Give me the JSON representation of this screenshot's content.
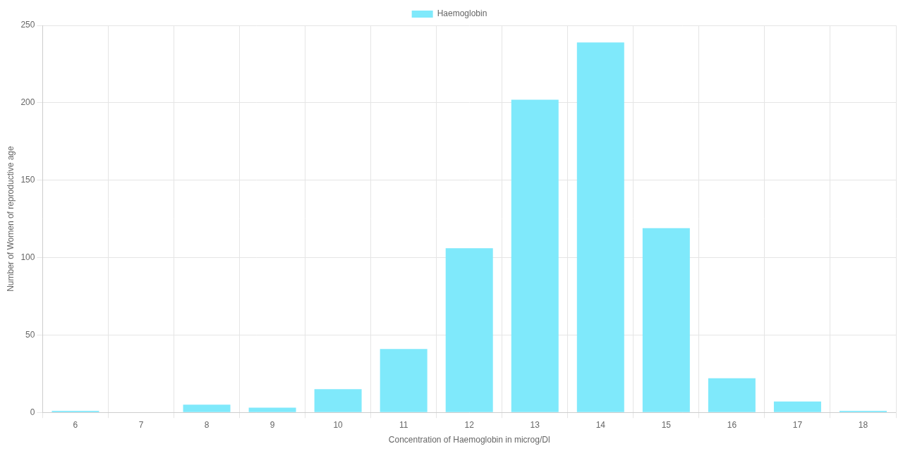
{
  "chart_data": {
    "type": "bar",
    "x_label": "Concentration of Haemoglobin in microg/Dl",
    "y_label": "Number of Women of reproductive age",
    "categories": [
      "6",
      "7",
      "8",
      "9",
      "10",
      "11",
      "12",
      "13",
      "14",
      "15",
      "16",
      "17",
      "18"
    ],
    "series": [
      {
        "name": "Haemoglobin",
        "color": "#7fe9fb",
        "values": [
          1,
          0,
          5,
          3,
          15,
          41,
          106,
          202,
          239,
          119,
          22,
          7,
          1
        ]
      }
    ],
    "ylim": [
      0,
      250
    ],
    "yticks": [
      0,
      50,
      100,
      150,
      200,
      250
    ],
    "grid": true,
    "legend": "top"
  }
}
